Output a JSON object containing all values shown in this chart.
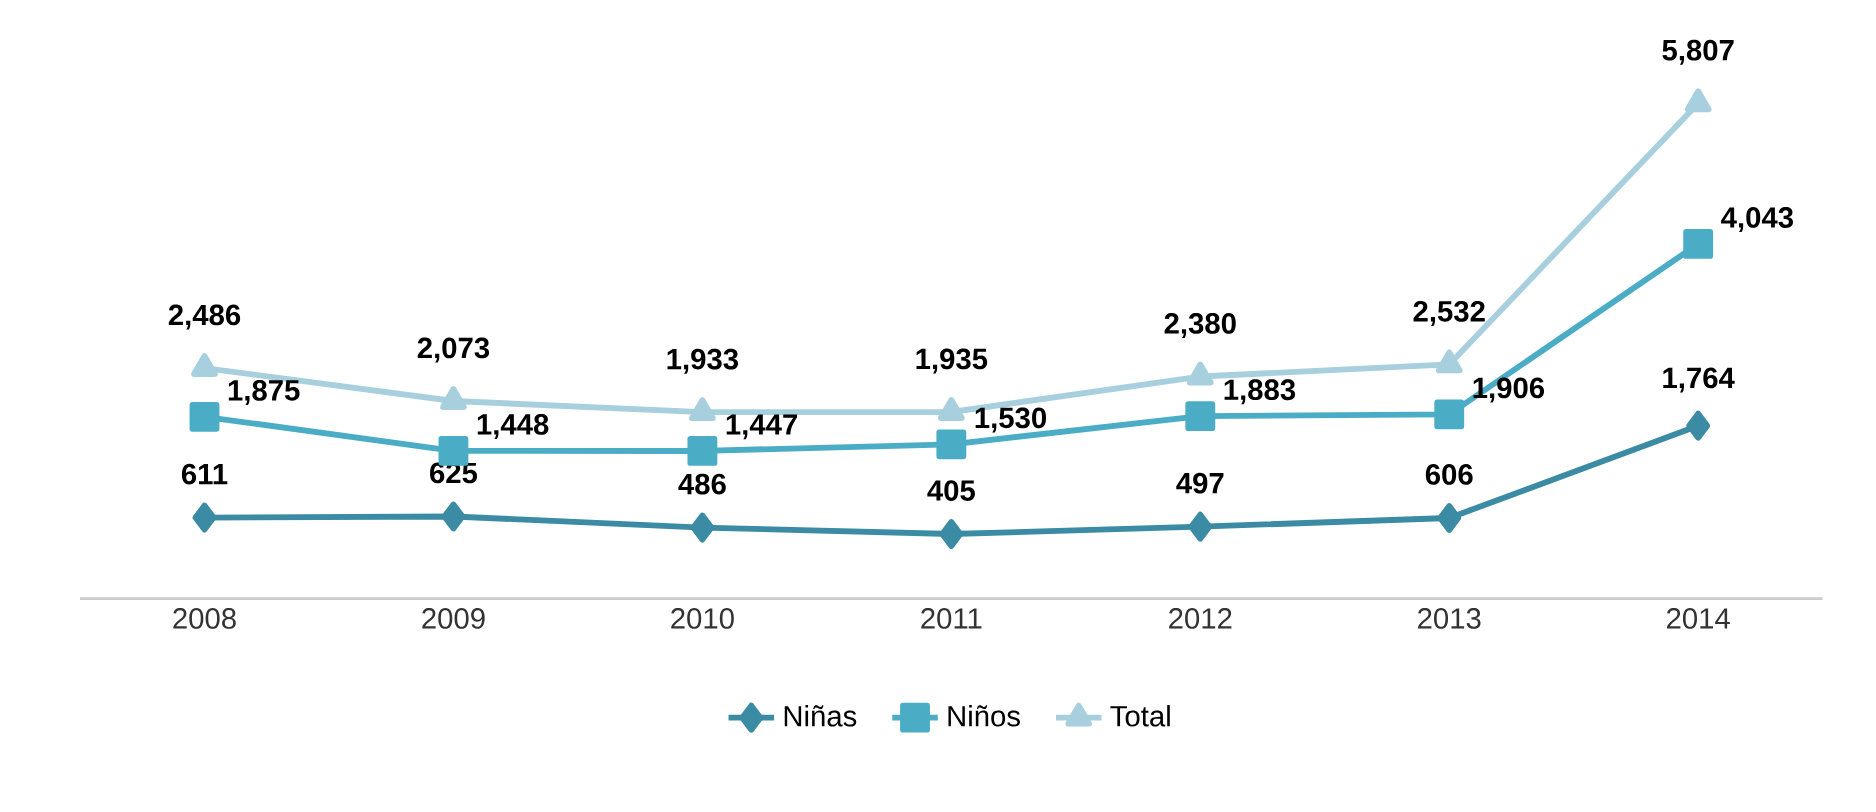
{
  "chart_data": {
    "type": "line",
    "categories": [
      "2008",
      "2009",
      "2010",
      "2011",
      "2012",
      "2013",
      "2014"
    ],
    "series": [
      {
        "name": "Niñas",
        "color": "#3a8ba3",
        "marker": "diamond",
        "values": [
          611,
          625,
          486,
          405,
          497,
          606,
          1764
        ],
        "value_labels": [
          "611",
          "625",
          "486",
          "405",
          "497",
          "606",
          "1,764"
        ]
      },
      {
        "name": "Niños",
        "color": "#4bacc6",
        "marker": "square",
        "values": [
          1875,
          1448,
          1447,
          1530,
          1883,
          1906,
          4043
        ],
        "value_labels": [
          "1,875",
          "1,448",
          "1,447",
          "1,530",
          "1,883",
          "1,906",
          "4,043"
        ]
      },
      {
        "name": "Total",
        "color": "#a7cfdd",
        "marker": "triangle",
        "values": [
          2486,
          2073,
          1933,
          1935,
          2380,
          2532,
          5807
        ],
        "value_labels": [
          "2,486",
          "2,073",
          "1,933",
          "1,935",
          "2,380",
          "2,532",
          "5,807"
        ]
      }
    ],
    "tick_labels": "x",
    "legend": "bottom",
    "line_style": "solid"
  }
}
